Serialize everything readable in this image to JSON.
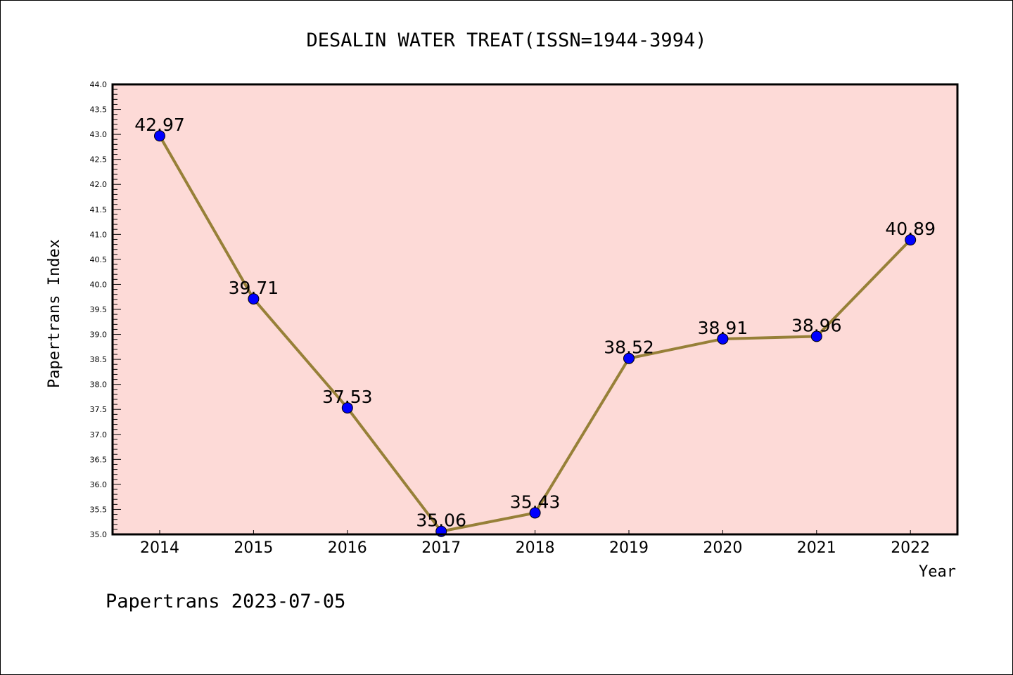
{
  "chart_data": {
    "type": "line",
    "title": "DESALIN WATER TREAT(ISSN=1944-3994)",
    "xlabel": "Year",
    "ylabel": "Papertrans Index",
    "categories": [
      "2014",
      "2015",
      "2016",
      "2017",
      "2018",
      "2019",
      "2020",
      "2021",
      "2022"
    ],
    "values": [
      42.97,
      39.71,
      37.53,
      35.06,
      35.43,
      38.52,
      38.91,
      38.96,
      40.89
    ],
    "data_labels": [
      "42.97",
      "39.71",
      "37.53",
      "35.06",
      "35.43",
      "38.52",
      "38.91",
      "38.96",
      "40.89"
    ],
    "ylim": [
      35.0,
      44.0
    ],
    "yticks": [
      "35.0",
      "35.5",
      "36.0",
      "36.5",
      "37.0",
      "37.5",
      "38.0",
      "38.5",
      "39.0",
      "39.5",
      "40.0",
      "40.5",
      "41.0",
      "41.5",
      "42.0",
      "42.5",
      "43.0",
      "43.5",
      "44.0"
    ],
    "grid": false,
    "colors": {
      "background": "#fddad7",
      "line": "#978038",
      "marker": "#0000ff"
    },
    "footer": "Papertrans 2023-07-05"
  }
}
